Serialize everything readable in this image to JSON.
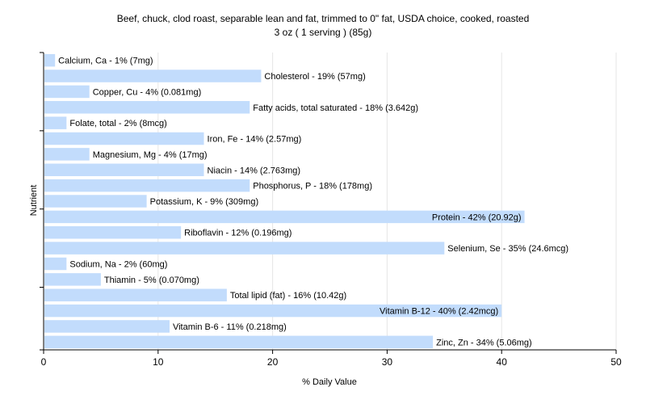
{
  "chart_data": {
    "type": "bar",
    "orientation": "horizontal",
    "title": "Beef, chuck, clod roast, separable lean and fat, trimmed to 0\" fat, USDA choice, cooked, roasted",
    "subtitle": "3 oz ( 1 serving ) (85g)",
    "xlabel": "% Daily Value",
    "ylabel": "Nutrient",
    "xlim": [
      0,
      50
    ],
    "xticks": [
      0,
      10,
      20,
      30,
      40,
      50
    ],
    "grid": true,
    "bar_color": "#c2dcfc",
    "categories": [
      "Calcium, Ca",
      "Cholesterol",
      "Copper, Cu",
      "Fatty acids, total saturated",
      "Folate, total",
      "Iron, Fe",
      "Magnesium, Mg",
      "Niacin",
      "Phosphorus, P",
      "Potassium, K",
      "Protein",
      "Riboflavin",
      "Selenium, Se",
      "Sodium, Na",
      "Thiamin",
      "Total lipid (fat)",
      "Vitamin B-12",
      "Vitamin B-6",
      "Zinc, Zn"
    ],
    "values": [
      1,
      19,
      4,
      18,
      2,
      14,
      4,
      14,
      18,
      9,
      42,
      12,
      35,
      2,
      5,
      16,
      40,
      11,
      34
    ],
    "labels": [
      "Calcium, Ca - 1% (7mg)",
      "Cholesterol - 19% (57mg)",
      "Copper, Cu - 4% (0.081mg)",
      "Fatty acids, total saturated - 18% (3.642g)",
      "Folate, total - 2% (8mcg)",
      "Iron, Fe - 14% (2.57mg)",
      "Magnesium, Mg - 4% (17mg)",
      "Niacin - 14% (2.763mg)",
      "Phosphorus, P - 18% (178mg)",
      "Potassium, K - 9% (309mg)",
      "Protein - 42% (20.92g)",
      "Riboflavin - 12% (0.196mg)",
      "Selenium, Se - 35% (24.6mcg)",
      "Sodium, Na - 2% (60mg)",
      "Thiamin - 5% (0.070mg)",
      "Total lipid (fat) - 16% (10.42g)",
      "Vitamin B-12 - 40% (2.42mcg)",
      "Vitamin B-6 - 11% (0.218mg)",
      "Zinc, Zn - 34% (5.06mg)"
    ],
    "label_inside": [
      false,
      false,
      false,
      false,
      false,
      false,
      false,
      false,
      false,
      false,
      true,
      false,
      false,
      false,
      false,
      false,
      true,
      false,
      false
    ]
  }
}
